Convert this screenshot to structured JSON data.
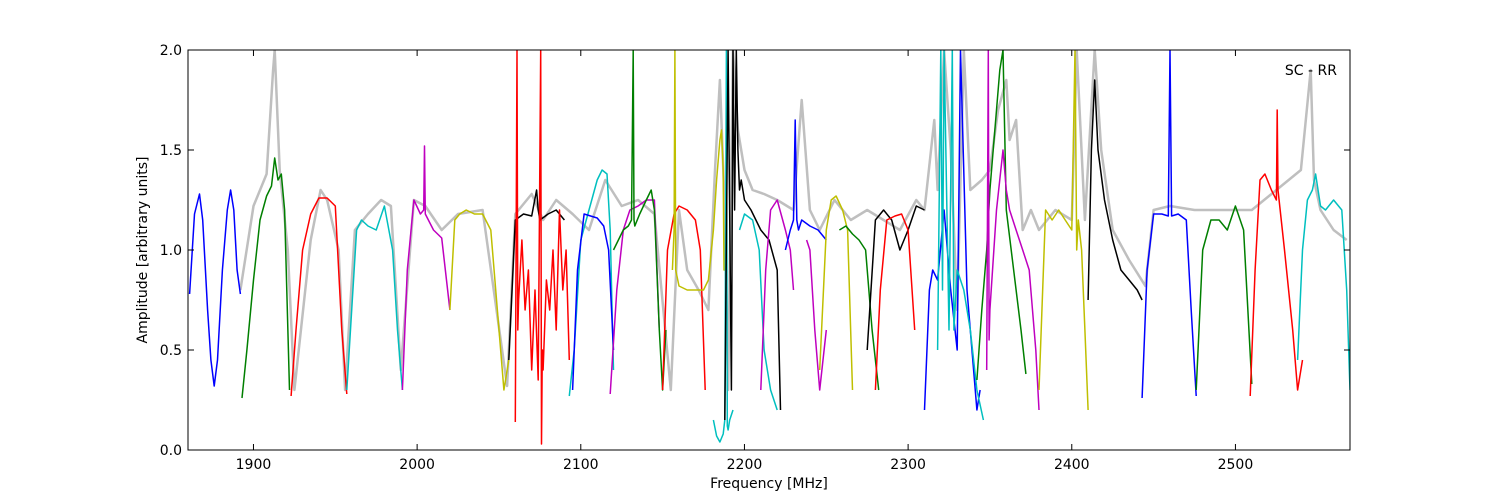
{
  "chart_data": {
    "type": "line",
    "title": "",
    "xlabel": "Frequency [MHz]",
    "ylabel": "Amplitude [arbitrary units]",
    "xlim": [
      1860,
      2570
    ],
    "ylim": [
      0.0,
      2.0
    ],
    "xticks": [
      1900,
      2000,
      2100,
      2200,
      2300,
      2400,
      2500
    ],
    "yticks": [
      0.0,
      0.5,
      1.0,
      1.5,
      2.0
    ],
    "xtick_labels": [
      "1900",
      "2000",
      "2100",
      "2200",
      "2300",
      "2400",
      "2500"
    ],
    "ytick_labels": [
      "0.0",
      "0.5",
      "1.0",
      "1.5",
      "2.0"
    ],
    "annotation": "SC - RR",
    "grid": false,
    "colors": {
      "raw": "#bfbfbf",
      "b": "#0000ff",
      "g": "#007f00",
      "r": "#ff0000",
      "c": "#00bfbf",
      "m": "#bf00bf",
      "y": "#bfbf00",
      "k": "#000000"
    },
    "raw_series": {
      "name": "raw",
      "x": [
        1892,
        1900,
        1908,
        1912,
        1913,
        1916,
        1921,
        1925,
        1935,
        1941,
        1945,
        1952,
        1956,
        1962,
        1970,
        1978,
        1984,
        1990,
        1998,
        2005,
        2015,
        2025,
        2040,
        2055,
        2060,
        2070,
        2077,
        2085,
        2095,
        2105,
        2115,
        2125,
        2135,
        2145,
        2155,
        2160,
        2165,
        2172,
        2178,
        2182,
        2185,
        2188,
        2190,
        2193,
        2196,
        2200,
        2205,
        2212,
        2220,
        2230,
        2235,
        2240,
        2246,
        2255,
        2265,
        2275,
        2285,
        2295,
        2305,
        2310,
        2316,
        2318,
        2322,
        2326,
        2330,
        2334,
        2338,
        2345,
        2350,
        2355,
        2360,
        2362,
        2366,
        2370,
        2375,
        2380,
        2390,
        2400,
        2403,
        2408,
        2414,
        2418,
        2425,
        2435,
        2445,
        2450,
        2460,
        2475,
        2490,
        2510,
        2525,
        2540,
        2546,
        2548,
        2552,
        2560,
        2568
      ],
      "y": [
        0.8,
        1.22,
        1.38,
        1.9,
        2.0,
        1.4,
        1.0,
        0.3,
        1.05,
        1.3,
        1.25,
        1.0,
        0.3,
        1.1,
        1.18,
        1.25,
        1.22,
        0.4,
        1.25,
        1.22,
        1.1,
        1.18,
        1.2,
        0.32,
        1.18,
        1.28,
        1.15,
        1.25,
        1.18,
        1.1,
        1.35,
        1.22,
        1.25,
        1.18,
        0.3,
        1.2,
        0.9,
        0.8,
        0.7,
        1.4,
        1.85,
        1.2,
        0.3,
        2.0,
        1.6,
        1.4,
        1.3,
        1.28,
        1.25,
        1.2,
        1.75,
        1.2,
        1.1,
        1.25,
        1.15,
        1.2,
        1.15,
        1.1,
        1.25,
        1.2,
        1.65,
        1.3,
        2.0,
        1.5,
        0.7,
        2.0,
        1.3,
        1.35,
        1.4,
        1.7,
        1.85,
        1.55,
        1.65,
        1.1,
        1.2,
        1.1,
        1.2,
        1.15,
        2.0,
        1.15,
        2.0,
        1.5,
        1.1,
        0.95,
        0.82,
        1.2,
        1.22,
        1.2,
        1.2,
        1.2,
        1.3,
        1.4,
        1.9,
        1.35,
        1.2,
        1.1,
        1.05
      ]
    },
    "series": [
      {
        "color": "b",
        "x": [
          1861,
          1864,
          1867,
          1869,
          1872,
          1874,
          1876,
          1878,
          1881,
          1884,
          1886,
          1888,
          1890,
          1892
        ],
        "y": [
          0.78,
          1.18,
          1.28,
          1.15,
          0.7,
          0.45,
          0.32,
          0.45,
          0.9,
          1.2,
          1.3,
          1.2,
          0.9,
          0.78
        ]
      },
      {
        "color": "g",
        "x": [
          1893,
          1896,
          1900,
          1904,
          1908,
          1911,
          1913,
          1915,
          1917,
          1919,
          1922
        ],
        "y": [
          0.26,
          0.5,
          0.85,
          1.15,
          1.27,
          1.32,
          1.46,
          1.35,
          1.38,
          1.2,
          0.3
        ]
      },
      {
        "color": "r",
        "x": [
          1923,
          1926,
          1930,
          1935,
          1940,
          1945,
          1950,
          1954,
          1957
        ],
        "y": [
          0.27,
          0.6,
          1.0,
          1.18,
          1.26,
          1.26,
          1.22,
          0.6,
          0.28
        ]
      },
      {
        "color": "c",
        "x": [
          1957,
          1960,
          1963,
          1966,
          1970,
          1975,
          1980,
          1985,
          1988,
          1991
        ],
        "y": [
          0.3,
          0.7,
          1.1,
          1.15,
          1.12,
          1.1,
          1.22,
          1.0,
          0.6,
          0.3
        ]
      },
      {
        "color": "m",
        "x": [
          1991,
          1994,
          1998,
          2002,
          2004,
          2004.5,
          2005,
          2010,
          2015,
          2020
        ],
        "y": [
          0.3,
          0.9,
          1.25,
          1.18,
          1.2,
          1.52,
          1.18,
          1.1,
          1.06,
          0.7
        ]
      },
      {
        "color": "y",
        "x": [
          2020,
          2023,
          2026,
          2030,
          2035,
          2040,
          2045,
          2050,
          2053,
          2056
        ],
        "y": [
          0.7,
          1.15,
          1.18,
          1.2,
          1.18,
          1.18,
          1.1,
          0.6,
          0.3,
          0.45
        ]
      },
      {
        "color": "k",
        "x": [
          2056,
          2060,
          2065,
          2070,
          2073,
          2074,
          2075,
          2080,
          2085,
          2090
        ],
        "y": [
          0.45,
          1.15,
          1.18,
          1.17,
          1.3,
          1.2,
          1.15,
          1.18,
          1.2,
          1.15
        ]
      },
      {
        "color": "r",
        "x": [
          2060,
          2061,
          2061.5,
          2062,
          2064,
          2066,
          2068,
          2070,
          2072,
          2074,
          2075.5,
          2076,
          2076.5,
          2077,
          2079,
          2081,
          2083,
          2085,
          2087,
          2089,
          2091,
          2093
        ],
        "y": [
          0.14,
          2.0,
          0.6,
          0.75,
          1.05,
          0.7,
          0.9,
          0.4,
          0.8,
          0.35,
          2.0,
          0.03,
          0.5,
          0.4,
          0.85,
          0.7,
          1.0,
          0.6,
          1.2,
          0.8,
          1.0,
          0.45
        ]
      },
      {
        "color": "c",
        "x": [
          2093,
          2096,
          2100,
          2105,
          2110,
          2113,
          2116,
          2118,
          2120
        ],
        "y": [
          0.27,
          0.5,
          1.05,
          1.2,
          1.35,
          1.4,
          1.38,
          1.1,
          0.4
        ]
      },
      {
        "color": "b",
        "x": [
          2095,
          2098,
          2102,
          2106,
          2110,
          2114,
          2117,
          2120
        ],
        "y": [
          0.3,
          0.9,
          1.18,
          1.17,
          1.16,
          1.12,
          1.0,
          0.5
        ]
      },
      {
        "color": "m",
        "x": [
          2118,
          2122,
          2126,
          2130,
          2135,
          2140,
          2145,
          2148
        ],
        "y": [
          0.28,
          0.8,
          1.1,
          1.2,
          1.22,
          1.25,
          1.25,
          0.6
        ]
      },
      {
        "color": "g",
        "x": [
          2120,
          2123,
          2126,
          2129,
          2131,
          2132,
          2132.5,
          2133,
          2136,
          2140,
          2143,
          2145,
          2148,
          2150,
          2152
        ],
        "y": [
          1.0,
          1.05,
          1.1,
          1.12,
          1.15,
          2.0,
          1.15,
          1.12,
          1.18,
          1.25,
          1.3,
          1.2,
          0.6,
          0.3,
          0.6
        ]
      },
      {
        "color": "r",
        "x": [
          2150,
          2153,
          2157,
          2160,
          2165,
          2170,
          2173,
          2176
        ],
        "y": [
          0.3,
          1.0,
          1.18,
          1.22,
          1.2,
          1.15,
          1.0,
          0.3
        ]
      },
      {
        "color": "y",
        "x": [
          2156,
          2157,
          2157.5,
          2158,
          2160,
          2165,
          2170,
          2175,
          2178,
          2181,
          2183,
          2185,
          2186,
          2187,
          2187.5,
          2188
        ],
        "y": [
          0.9,
          1.1,
          2.0,
          0.9,
          0.82,
          0.8,
          0.8,
          0.8,
          0.85,
          1.1,
          1.35,
          1.55,
          1.6,
          1.4,
          0.9,
          0.9
        ]
      },
      {
        "color": "c",
        "x": [
          2181,
          2183,
          2185,
          2187,
          2188,
          2189,
          2189.5,
          2190,
          2191,
          2193
        ],
        "y": [
          0.15,
          0.07,
          0.04,
          0.08,
          0.15,
          2.0,
          0.12,
          0.1,
          0.15,
          0.2
        ]
      },
      {
        "color": "k",
        "x": [
          2188,
          2190,
          2192,
          2193,
          2194,
          2195,
          2196,
          2197,
          2198,
          2200,
          2204,
          2210,
          2215,
          2220,
          2222
        ],
        "y": [
          0.15,
          2.0,
          0.3,
          2.0,
          1.2,
          2.0,
          1.5,
          1.3,
          1.35,
          1.25,
          1.2,
          1.1,
          1.05,
          0.9,
          0.2
        ]
      },
      {
        "color": "c",
        "x": [
          2197,
          2200,
          2205,
          2209,
          2212,
          2216,
          2220
        ],
        "y": [
          1.1,
          1.18,
          1.15,
          1.0,
          0.5,
          0.3,
          0.2
        ]
      },
      {
        "color": "m",
        "x": [
          2210,
          2213,
          2216,
          2220,
          2225,
          2228,
          2230
        ],
        "y": [
          0.3,
          0.9,
          1.2,
          1.25,
          1.1,
          1.0,
          0.8
        ]
      },
      {
        "color": "b",
        "x": [
          2225,
          2228,
          2230,
          2231,
          2232,
          2233,
          2235,
          2240,
          2245,
          2250
        ],
        "y": [
          1.0,
          1.1,
          1.15,
          1.65,
          1.15,
          1.1,
          1.15,
          1.12,
          1.1,
          1.05
        ]
      },
      {
        "color": "m",
        "x": [
          2238,
          2240,
          2243,
          2246,
          2250
        ],
        "y": [
          1.05,
          1.0,
          0.6,
          0.3,
          0.6
        ]
      },
      {
        "color": "y",
        "x": [
          2246,
          2250,
          2253,
          2256,
          2260,
          2263,
          2266
        ],
        "y": [
          0.4,
          1.1,
          1.25,
          1.27,
          1.2,
          1.1,
          0.3
        ]
      },
      {
        "color": "g",
        "x": [
          2258,
          2262,
          2266,
          2270,
          2274,
          2278,
          2282
        ],
        "y": [
          1.1,
          1.12,
          1.08,
          1.05,
          1.0,
          0.6,
          0.3
        ]
      },
      {
        "color": "k",
        "x": [
          2275,
          2280,
          2285,
          2290,
          2295,
          2300,
          2305,
          2310
        ],
        "y": [
          0.5,
          1.15,
          1.2,
          1.15,
          1.0,
          1.1,
          1.22,
          1.2
        ]
      },
      {
        "color": "r",
        "x": [
          2280,
          2283,
          2287,
          2292,
          2296,
          2300,
          2304
        ],
        "y": [
          0.3,
          0.8,
          1.15,
          1.17,
          1.18,
          1.1,
          0.6
        ]
      },
      {
        "color": "b",
        "x": [
          2310,
          2313,
          2315,
          2318,
          2322,
          2326,
          2330,
          2332,
          2336,
          2340,
          2342,
          2344
        ],
        "y": [
          0.2,
          0.8,
          0.9,
          0.85,
          1.2,
          0.8,
          0.5,
          2.0,
          0.8,
          0.4,
          0.2,
          0.3
        ]
      },
      {
        "color": "c",
        "x": [
          2318,
          2320,
          2321,
          2322,
          2325,
          2327,
          2328,
          2330,
          2334,
          2338,
          2342,
          2346
        ],
        "y": [
          0.5,
          2.0,
          0.8,
          2.0,
          0.6,
          2.0,
          0.6,
          0.9,
          0.8,
          0.6,
          0.3,
          0.15
        ]
      },
      {
        "color": "g",
        "x": [
          2342,
          2345,
          2348,
          2350,
          2352,
          2354,
          2356,
          2358,
          2360,
          2363,
          2366,
          2369,
          2372
        ],
        "y": [
          0.35,
          0.7,
          1.0,
          1.3,
          1.5,
          1.7,
          1.9,
          2.0,
          1.2,
          1.0,
          0.8,
          0.6,
          0.38
        ]
      },
      {
        "color": "m",
        "x": [
          2348,
          2349,
          2349.5,
          2350,
          2354,
          2358,
          2360,
          2362,
          2366,
          2370,
          2374,
          2378,
          2380
        ],
        "y": [
          0.4,
          2.0,
          0.55,
          0.7,
          1.2,
          1.5,
          1.3,
          1.2,
          1.1,
          1.0,
          0.9,
          0.5,
          0.2
        ]
      },
      {
        "color": "y",
        "x": [
          2380,
          2384,
          2388,
          2392,
          2396,
          2400,
          2402,
          2403,
          2404,
          2406,
          2408,
          2410
        ],
        "y": [
          0.3,
          1.2,
          1.15,
          1.2,
          1.15,
          1.1,
          2.0,
          1.0,
          1.15,
          1.0,
          0.6,
          0.2
        ]
      },
      {
        "color": "k",
        "x": [
          2410,
          2412,
          2414,
          2416,
          2420,
          2425,
          2430,
          2435,
          2440,
          2443
        ],
        "y": [
          0.75,
          1.5,
          1.85,
          1.5,
          1.25,
          1.05,
          0.9,
          0.85,
          0.8,
          0.75
        ]
      },
      {
        "color": "b",
        "x": [
          2443,
          2446,
          2450,
          2455,
          2459,
          2460,
          2461,
          2465,
          2470,
          2473,
          2476
        ],
        "y": [
          0.26,
          0.9,
          1.18,
          1.18,
          1.17,
          2.0,
          1.17,
          1.18,
          1.15,
          0.7,
          0.27
        ]
      },
      {
        "color": "g",
        "x": [
          2476,
          2480,
          2485,
          2490,
          2495,
          2500,
          2505,
          2510
        ],
        "y": [
          0.3,
          1.0,
          1.15,
          1.15,
          1.1,
          1.22,
          1.1,
          0.33
        ]
      },
      {
        "color": "r",
        "x": [
          2509,
          2512,
          2515,
          2518,
          2522,
          2525,
          2525.5,
          2526,
          2530,
          2535,
          2538,
          2541
        ],
        "y": [
          0.27,
          0.9,
          1.35,
          1.38,
          1.3,
          1.25,
          1.7,
          1.3,
          1.0,
          0.6,
          0.3,
          0.45
        ]
      },
      {
        "color": "c",
        "x": [
          2538,
          2541,
          2544,
          2547,
          2549,
          2552,
          2555,
          2560,
          2565,
          2568,
          2570
        ],
        "y": [
          0.45,
          1.0,
          1.25,
          1.3,
          1.38,
          1.22,
          1.2,
          1.25,
          1.2,
          0.8,
          0.3
        ]
      }
    ]
  }
}
